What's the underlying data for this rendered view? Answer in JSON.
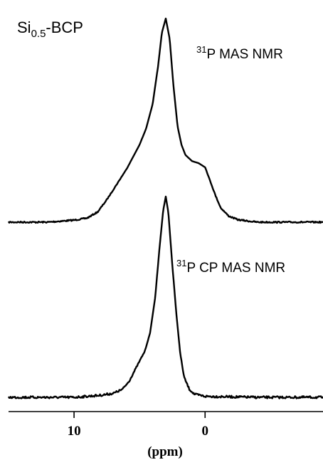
{
  "chart_data": {
    "type": "line",
    "title": "",
    "sample_label": {
      "prefix": "Si",
      "subscript": "0.5",
      "suffix": "-BCP"
    },
    "xlabel": "(ppm)",
    "x_reversed": true,
    "xlim": [
      15,
      -9
    ],
    "x_ticks": [
      10,
      0
    ],
    "x_tick_labels": [
      "10",
      "0"
    ],
    "y_axis_shown": false,
    "grid": false,
    "series": [
      {
        "label": {
          "isotope": "31",
          "text": "P MAS NMR"
        },
        "peak_position_ppm": 3.0,
        "points": [
          [
            15,
            0.0
          ],
          [
            12,
            0.0
          ],
          [
            10,
            0.01
          ],
          [
            9,
            0.02
          ],
          [
            8.2,
            0.05
          ],
          [
            7.5,
            0.11
          ],
          [
            7,
            0.16
          ],
          [
            6.5,
            0.21
          ],
          [
            6,
            0.26
          ],
          [
            5.5,
            0.32
          ],
          [
            5,
            0.38
          ],
          [
            4.5,
            0.46
          ],
          [
            4,
            0.58
          ],
          [
            3.6,
            0.76
          ],
          [
            3.3,
            0.93
          ],
          [
            3.0,
            1.0
          ],
          [
            2.7,
            0.9
          ],
          [
            2.4,
            0.66
          ],
          [
            2.1,
            0.47
          ],
          [
            1.8,
            0.38
          ],
          [
            1.5,
            0.33
          ],
          [
            1.0,
            0.3
          ],
          [
            0.5,
            0.29
          ],
          [
            0.0,
            0.27
          ],
          [
            -0.4,
            0.2
          ],
          [
            -0.8,
            0.13
          ],
          [
            -1.2,
            0.07
          ],
          [
            -1.8,
            0.03
          ],
          [
            -2.5,
            0.012
          ],
          [
            -4,
            0.0
          ],
          [
            -9,
            0.0
          ]
        ]
      },
      {
        "label": {
          "isotope": "31",
          "text": "P CP MAS NMR"
        },
        "peak_position_ppm": 3.0,
        "points": [
          [
            15,
            0.0
          ],
          [
            10,
            0.0
          ],
          [
            8,
            0.01
          ],
          [
            7,
            0.02
          ],
          [
            6.3,
            0.04
          ],
          [
            5.8,
            0.08
          ],
          [
            5.4,
            0.13
          ],
          [
            5.0,
            0.18
          ],
          [
            4.6,
            0.23
          ],
          [
            4.2,
            0.32
          ],
          [
            3.8,
            0.5
          ],
          [
            3.5,
            0.73
          ],
          [
            3.2,
            0.93
          ],
          [
            3.0,
            1.0
          ],
          [
            2.8,
            0.92
          ],
          [
            2.5,
            0.66
          ],
          [
            2.2,
            0.42
          ],
          [
            1.9,
            0.22
          ],
          [
            1.6,
            0.1
          ],
          [
            1.2,
            0.04
          ],
          [
            0.8,
            0.015
          ],
          [
            0.0,
            0.005
          ],
          [
            -4,
            0.0
          ],
          [
            -9,
            0.0
          ]
        ]
      }
    ]
  }
}
